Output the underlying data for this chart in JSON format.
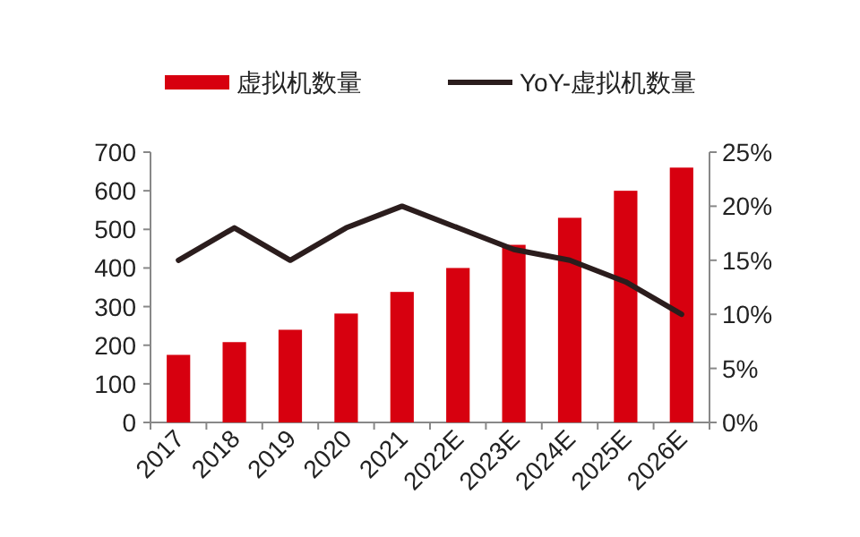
{
  "chart_data": {
    "type": "bar",
    "categories": [
      "2017",
      "2018",
      "2019",
      "2020",
      "2021",
      "2022E",
      "2023E",
      "2024E",
      "2025E",
      "2026E"
    ],
    "series": [
      {
        "name": "虚拟机数量",
        "color": "#d7000f",
        "values": [
          175,
          208,
          240,
          282,
          338,
          400,
          460,
          530,
          600,
          660
        ]
      },
      {
        "name": "YoY-虚拟机数量",
        "type": "line",
        "axis": "y2",
        "color": "#2b1d1d",
        "values": [
          15,
          18,
          15,
          18,
          20,
          18,
          16,
          15,
          13,
          10
        ]
      }
    ],
    "ylim": [
      0,
      700
    ],
    "yticks": [
      0,
      100,
      200,
      300,
      400,
      500,
      600,
      700
    ],
    "y2lim": [
      0,
      25
    ],
    "y2ticks": [
      {
        "value": 0,
        "label": "0%"
      },
      {
        "value": 5,
        "label": "5%"
      },
      {
        "value": 10,
        "label": "10%"
      },
      {
        "value": 15,
        "label": "15%"
      },
      {
        "value": 20,
        "label": "20%"
      },
      {
        "value": 25,
        "label": "25%"
      }
    ],
    "legend": "top",
    "grid": false
  }
}
